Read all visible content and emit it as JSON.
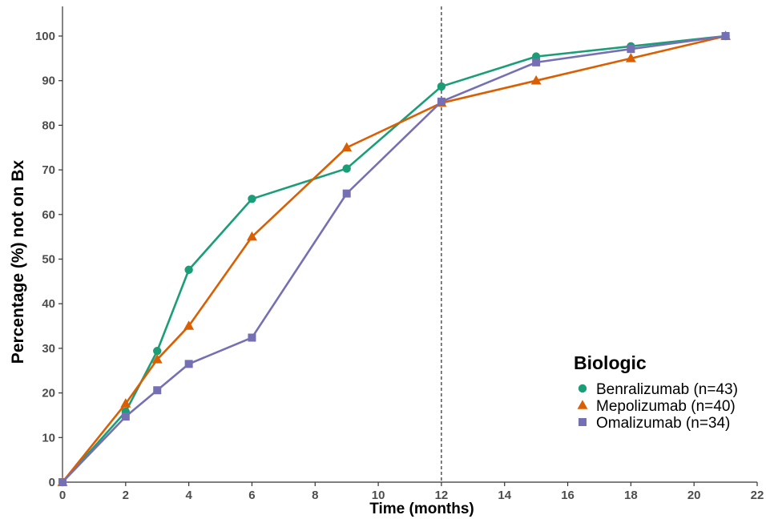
{
  "chart_data": {
    "type": "line",
    "xlabel": "Time (months)",
    "ylabel": "Percentage (%) not on Bx",
    "xlim": [
      0,
      22
    ],
    "ylim": [
      0,
      105
    ],
    "x_ticks": [
      0,
      2,
      4,
      6,
      8,
      10,
      12,
      14,
      16,
      18,
      20,
      22
    ],
    "y_ticks": [
      0,
      10,
      20,
      30,
      40,
      50,
      60,
      70,
      80,
      90,
      100
    ],
    "x_tick_labels": [
      "0",
      "2",
      "4",
      "6",
      "8",
      "10",
      "12",
      "14",
      "16",
      "18",
      "20",
      "22"
    ],
    "y_tick_labels": [
      "0",
      "10",
      "20",
      "30",
      "40",
      "50",
      "60",
      "70",
      "80",
      "90",
      "100"
    ],
    "grid": false,
    "reference_line": {
      "x": 12,
      "style": "dashed"
    },
    "legend": {
      "title": "Biologic",
      "placement": "bottom-right"
    },
    "series": [
      {
        "name": "Benralizumab (n=43)",
        "color": "#1b9e77",
        "marker": "circle",
        "x": [
          0,
          2,
          3,
          4,
          6,
          9,
          12,
          15,
          18,
          21
        ],
        "y": [
          0,
          15.8,
          29.4,
          47.6,
          63.5,
          70.3,
          88.7,
          95.4,
          97.7,
          100
        ]
      },
      {
        "name": "Mepolizumab (n=40)",
        "color": "#d95f02",
        "marker": "triangle",
        "x": [
          0,
          2,
          3,
          4,
          6,
          9,
          12,
          15,
          18,
          21
        ],
        "y": [
          0,
          17.6,
          27.5,
          35,
          55,
          75,
          85,
          90,
          95,
          100
        ]
      },
      {
        "name": "Omalizumab (n=34)",
        "color": "#7570b3",
        "marker": "square",
        "x": [
          0,
          2,
          3,
          4,
          6,
          9,
          12,
          15,
          18,
          21
        ],
        "y": [
          0,
          14.7,
          20.6,
          26.5,
          32.4,
          64.7,
          85.3,
          94.1,
          97.1,
          100
        ]
      }
    ]
  }
}
